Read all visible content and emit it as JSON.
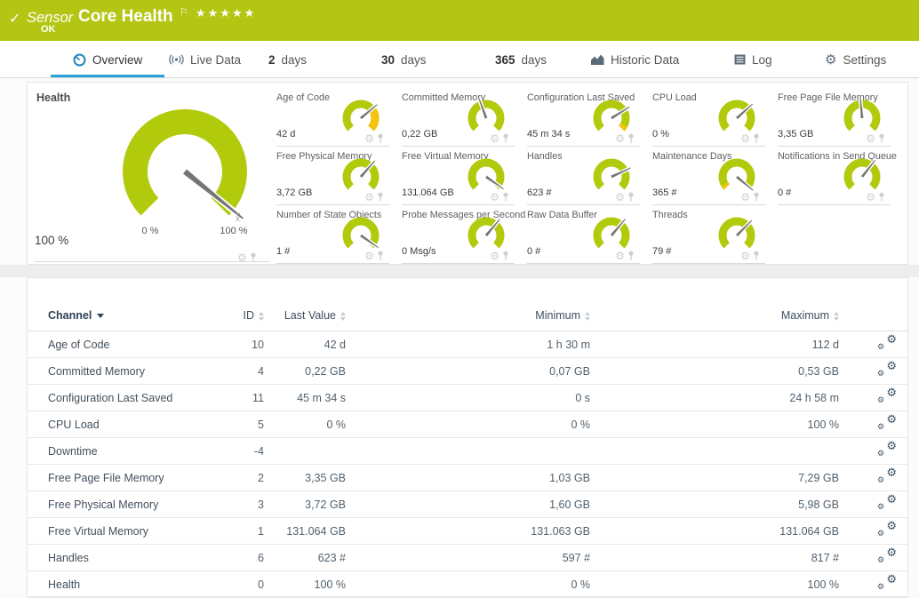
{
  "colors": {
    "brand_green": "#b4c613",
    "gauge_green": "#b2ca0c",
    "gauge_warn": "#f2c40f",
    "accent_blue": "#2aa3dc",
    "needle_gray": "#757575"
  },
  "header": {
    "check": "✓",
    "kind": "Sensor",
    "title": "Core Health",
    "flag": "⚐",
    "stars": "★★★★★",
    "status": "OK"
  },
  "tabs": [
    {
      "number": "",
      "label": "Overview",
      "active": true
    },
    {
      "number": "",
      "label": "Live Data",
      "active": false
    },
    {
      "number": "2",
      "label": "days",
      "active": false
    },
    {
      "number": "30",
      "label": "days",
      "active": false
    },
    {
      "number": "365",
      "label": "days",
      "active": false
    },
    {
      "number": "",
      "label": "Historic Data",
      "active": false
    },
    {
      "number": "",
      "label": "Log",
      "active": false
    },
    {
      "number": "",
      "label": "Settings",
      "active": false
    }
  ],
  "main_gauge": {
    "label": "Health",
    "value": "100 %",
    "scale_min": "0 %",
    "scale_max": "100 %",
    "avg_marker": "x",
    "needle_angle": 129
  },
  "gauges": [
    {
      "label": "Age of Code",
      "value": "42 d",
      "needle_angle": 50,
      "yellow": [
        0.7,
        1.0
      ]
    },
    {
      "label": "Committed Memory",
      "value": "0,22 GB",
      "needle_angle": -20
    },
    {
      "label": "Configuration Last Saved",
      "value": "45 m 34 s",
      "needle_angle": 58,
      "yellow": [
        0.94,
        1.0
      ]
    },
    {
      "label": "CPU Load",
      "value": "0 %",
      "needle_angle": 48
    },
    {
      "label": "Free Page File Memory",
      "value": "3,35 GB",
      "needle_angle": -5
    },
    {
      "label": "Free Physical Memory",
      "value": "3,72 GB",
      "needle_angle": 41
    },
    {
      "label": "Free Virtual Memory",
      "value": "131.064 GB",
      "needle_angle": 125
    },
    {
      "label": "Handles",
      "value": "623 #",
      "needle_angle": 65
    },
    {
      "label": "Maintenance Days",
      "value": "365 #",
      "needle_angle": 130,
      "yellow": [
        0.0,
        0.05
      ]
    },
    {
      "label": "Notifications in Send Queue",
      "value": "0 #",
      "needle_angle": 38
    },
    {
      "label": "Number of State Objects",
      "value": "1 #",
      "needle_angle": 125
    },
    {
      "label": "Probe Messages per Second",
      "value": "0 Msg/s",
      "needle_angle": 40
    },
    {
      "label": "Raw Data Buffer",
      "value": "0 #",
      "needle_angle": 40
    },
    {
      "label": "Threads",
      "value": "79 #",
      "needle_angle": 45
    }
  ],
  "table": {
    "headers": [
      "Channel",
      "ID",
      "Last Value",
      "Minimum",
      "Maximum"
    ],
    "sorted_by": "Channel",
    "rows": [
      [
        "Age of Code",
        "10",
        "42 d",
        "1 h 30 m",
        "112 d"
      ],
      [
        "Committed Memory",
        "4",
        "0,22 GB",
        "0,07 GB",
        "0,53 GB"
      ],
      [
        "Configuration Last Saved",
        "11",
        "45 m 34 s",
        "0 s",
        "24 h 58 m"
      ],
      [
        "CPU Load",
        "5",
        "0 %",
        "0 %",
        "100 %"
      ],
      [
        "Downtime",
        "-4",
        "",
        "",
        ""
      ],
      [
        "Free Page File Memory",
        "2",
        "3,35 GB",
        "1,03 GB",
        "7,29 GB"
      ],
      [
        "Free Physical Memory",
        "3",
        "3,72 GB",
        "1,60 GB",
        "5,98 GB"
      ],
      [
        "Free Virtual Memory",
        "1",
        "131.064 GB",
        "131.063 GB",
        "131.064 GB"
      ],
      [
        "Handles",
        "6",
        "623 #",
        "597 #",
        "817 #"
      ],
      [
        "Health",
        "0",
        "100 %",
        "0 %",
        "100 %"
      ]
    ]
  }
}
